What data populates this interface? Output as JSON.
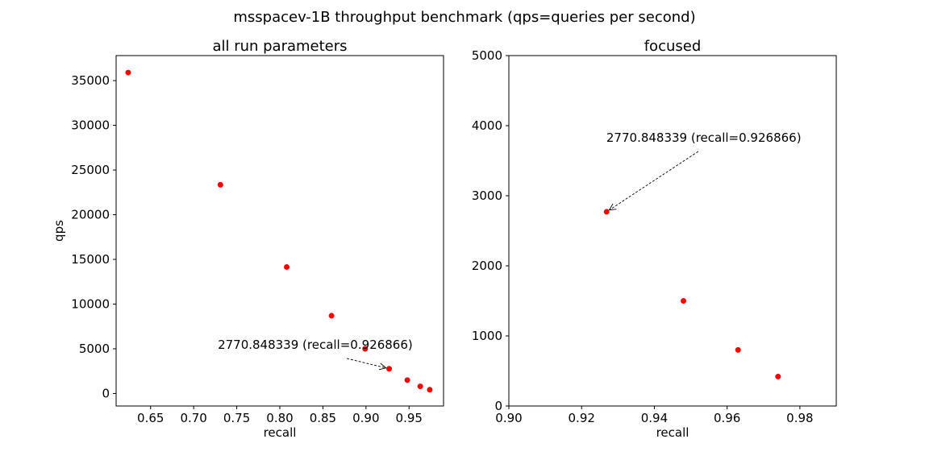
{
  "suptitle": "msspacev-1B throughput benchmark (qps=queries per second)",
  "chart_data": [
    {
      "type": "scatter",
      "title": "all run parameters",
      "xlabel": "recall",
      "ylabel": "qps",
      "xlim": [
        0.61,
        0.99
      ],
      "ylim": [
        -1400,
        37800
      ],
      "xticks": [
        0.65,
        0.7,
        0.75,
        0.8,
        0.85,
        0.9,
        0.95
      ],
      "xtick_labels": [
        "0.65",
        "0.70",
        "0.75",
        "0.80",
        "0.85",
        "0.90",
        "0.95"
      ],
      "yticks": [
        0,
        5000,
        10000,
        15000,
        20000,
        25000,
        30000,
        35000
      ],
      "ytick_labels": [
        "0",
        "5000",
        "10000",
        "15000",
        "20000",
        "25000",
        "30000",
        "35000"
      ],
      "color": "#ff0000",
      "points": [
        {
          "x": 0.624,
          "y": 35900
        },
        {
          "x": 0.731,
          "y": 23350
        },
        {
          "x": 0.808,
          "y": 14150
        },
        {
          "x": 0.86,
          "y": 8700
        },
        {
          "x": 0.899,
          "y": 5000
        },
        {
          "x": 0.926866,
          "y": 2770.848339
        },
        {
          "x": 0.948,
          "y": 1500
        },
        {
          "x": 0.963,
          "y": 800
        },
        {
          "x": 0.974,
          "y": 420
        }
      ],
      "annotation": {
        "text": "2770.848339 (recall=0.926866)",
        "target": {
          "x": 0.926866,
          "y": 2770.848339
        },
        "text_pos": {
          "x": 0.728,
          "y": 5000
        }
      }
    },
    {
      "type": "scatter",
      "title": "focused",
      "xlabel": "recall",
      "ylabel": "",
      "xlim": [
        0.9,
        0.99
      ],
      "ylim": [
        0,
        5000
      ],
      "xticks": [
        0.9,
        0.92,
        0.94,
        0.96,
        0.98
      ],
      "xtick_labels": [
        "0.90",
        "0.92",
        "0.94",
        "0.96",
        "0.98"
      ],
      "yticks": [
        0,
        1000,
        2000,
        3000,
        4000,
        5000
      ],
      "ytick_labels": [
        "0",
        "1000",
        "2000",
        "3000",
        "4000",
        "5000"
      ],
      "color": "#ff0000",
      "points": [
        {
          "x": 0.926866,
          "y": 2770.848339
        },
        {
          "x": 0.948,
          "y": 1500
        },
        {
          "x": 0.963,
          "y": 800
        },
        {
          "x": 0.974,
          "y": 420
        }
      ],
      "annotation": {
        "text": "2770.848339 (recall=0.926866)",
        "target": {
          "x": 0.926866,
          "y": 2770.848339
        },
        "text_pos": {
          "x": 0.9268,
          "y": 3770
        }
      }
    }
  ]
}
